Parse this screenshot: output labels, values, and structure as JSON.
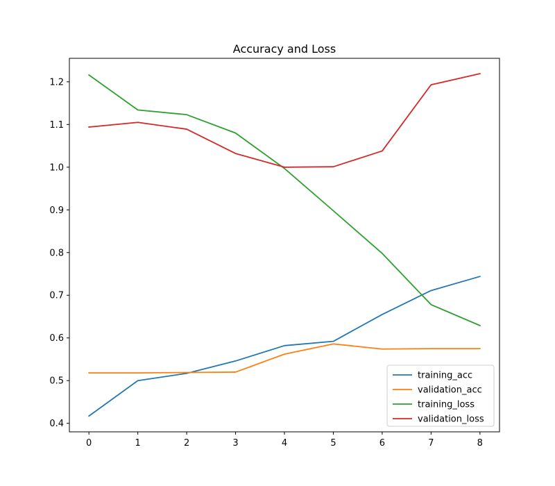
{
  "chart_data": {
    "type": "line",
    "title": "Accuracy and Loss",
    "xlabel": "",
    "ylabel": "",
    "x": [
      0,
      1,
      2,
      3,
      4,
      5,
      6,
      7,
      8
    ],
    "xlim": [
      -0.4,
      8.4
    ],
    "ylim": [
      0.38,
      1.255
    ],
    "xticks": [
      0,
      1,
      2,
      3,
      4,
      5,
      6,
      7,
      8
    ],
    "yticks": [
      0.4,
      0.5,
      0.6,
      0.7,
      0.8,
      0.9,
      1.0,
      1.1,
      1.2
    ],
    "ytick_labels": [
      "0.4",
      "0.5",
      "0.6",
      "0.7",
      "0.8",
      "0.9",
      "1.0",
      "1.1",
      "1.2"
    ],
    "grid": false,
    "legend_position": "bottom-right",
    "series": [
      {
        "name": "training_acc",
        "color": "#1f77b4",
        "values": [
          0.417,
          0.5,
          0.517,
          0.546,
          0.582,
          0.592,
          0.655,
          0.711,
          0.744
        ]
      },
      {
        "name": "validation_acc",
        "color": "#ff7f0e",
        "values": [
          0.518,
          0.518,
          0.519,
          0.52,
          0.562,
          0.586,
          0.574,
          0.575,
          0.575
        ]
      },
      {
        "name": "training_loss",
        "color": "#2ca02c",
        "values": [
          1.216,
          1.134,
          1.123,
          1.08,
          0.997,
          0.898,
          0.798,
          0.678,
          0.629
        ]
      },
      {
        "name": "validation_loss",
        "color": "#d62728",
        "values": [
          1.094,
          1.105,
          1.089,
          1.032,
          1.0,
          1.001,
          1.038,
          1.193,
          1.219
        ]
      }
    ]
  }
}
